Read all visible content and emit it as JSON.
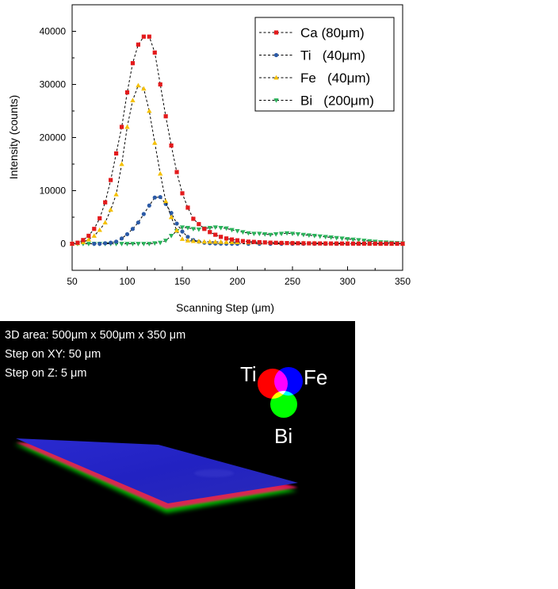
{
  "chart_data": {
    "type": "line",
    "xlabel": "Scanning Step (μm)",
    "ylabel": "Intensity (counts)",
    "xlim": [
      50,
      350
    ],
    "ylim": [
      -5000,
      45000
    ],
    "xticks": [
      "50",
      "100",
      "150",
      "200",
      "250",
      "300",
      "350"
    ],
    "yticks": [
      "0",
      "10000",
      "20000",
      "30000",
      "40000"
    ],
    "legend_position": "top-right",
    "grid": false,
    "series": [
      {
        "name": "Ca (80μm)",
        "color": "#e31a1c",
        "marker": "square",
        "x": [
          50,
          55,
          60,
          65,
          70,
          75,
          80,
          85,
          90,
          95,
          100,
          105,
          110,
          115,
          120,
          125,
          130,
          135,
          140,
          145,
          150,
          155,
          160,
          165,
          170,
          175,
          180,
          185,
          190,
          195,
          200,
          205,
          210,
          215,
          220,
          225,
          230,
          235,
          240,
          245,
          250,
          255,
          260,
          265,
          270,
          275,
          280,
          285,
          290,
          295,
          300,
          305,
          310,
          315,
          320,
          325,
          330,
          335,
          340,
          345,
          350
        ],
        "y": [
          0,
          200,
          700,
          1500,
          2800,
          4800,
          7800,
          12000,
          17000,
          22000,
          28500,
          34000,
          37500,
          39000,
          39000,
          36000,
          30000,
          24000,
          18500,
          13500,
          9500,
          6800,
          4700,
          3700,
          2800,
          2200,
          1700,
          1300,
          1000,
          800,
          650,
          500,
          400,
          350,
          300,
          250,
          200,
          180,
          150,
          130,
          120,
          100,
          90,
          80,
          70,
          60,
          55,
          50,
          45,
          40,
          35,
          30,
          28,
          25,
          22,
          20,
          18,
          15,
          12,
          10,
          8
        ]
      },
      {
        "name": "Ti   (40μm)",
        "color": "#2b5aa6",
        "marker": "circle",
        "x": [
          70,
          75,
          80,
          85,
          90,
          95,
          100,
          105,
          110,
          115,
          120,
          125,
          130,
          135,
          140,
          145,
          150,
          155,
          160,
          165,
          170,
          175,
          180,
          185,
          190,
          195,
          200,
          210,
          220,
          230,
          240,
          250,
          260,
          270,
          280,
          290,
          300,
          310,
          320,
          330,
          340,
          350
        ],
        "y": [
          0,
          0,
          100,
          200,
          400,
          1000,
          1800,
          2800,
          4000,
          5600,
          7200,
          8700,
          8800,
          7500,
          5800,
          3800,
          2300,
          1300,
          700,
          400,
          200,
          100,
          50,
          30,
          20,
          10,
          0,
          0,
          0,
          0,
          0,
          0,
          0,
          0,
          0,
          0,
          0,
          0,
          0,
          0,
          0,
          0
        ]
      },
      {
        "name": "Fe   (40μm)",
        "color": "#f5c000",
        "marker": "triangle-up",
        "x": [
          50,
          55,
          60,
          65,
          70,
          75,
          80,
          85,
          90,
          95,
          100,
          105,
          110,
          115,
          120,
          125,
          130,
          135,
          140,
          145,
          150,
          155,
          160,
          165,
          170,
          175,
          180,
          185,
          190,
          195,
          200,
          210,
          220,
          230,
          240,
          250,
          260,
          270,
          280,
          290,
          300,
          310,
          320,
          330,
          340,
          350
        ],
        "y": [
          0,
          100,
          300,
          800,
          1500,
          2600,
          4000,
          6400,
          9300,
          15000,
          22000,
          27000,
          29800,
          29200,
          25000,
          19000,
          13200,
          8000,
          5000,
          2500,
          900,
          600,
          500,
          450,
          400,
          380,
          360,
          340,
          320,
          300,
          280,
          250,
          220,
          200,
          180,
          160,
          140,
          120,
          100,
          90,
          80,
          70,
          60,
          50,
          40,
          30
        ]
      },
      {
        "name": "Bi   (200μm)",
        "color": "#2ab25a",
        "marker": "triangle-down",
        "x": [
          50,
          55,
          60,
          65,
          70,
          75,
          80,
          85,
          90,
          95,
          100,
          105,
          110,
          115,
          120,
          125,
          130,
          135,
          140,
          145,
          150,
          155,
          160,
          165,
          170,
          175,
          180,
          185,
          190,
          195,
          200,
          205,
          210,
          215,
          220,
          225,
          230,
          235,
          240,
          245,
          250,
          255,
          260,
          265,
          270,
          275,
          280,
          285,
          290,
          295,
          300,
          305,
          310,
          315,
          320,
          325,
          330,
          335,
          340,
          345,
          350
        ],
        "y": [
          0,
          0,
          0,
          0,
          0,
          0,
          0,
          0,
          0,
          0,
          0,
          0,
          0,
          0,
          0,
          100,
          200,
          600,
          1500,
          2400,
          3100,
          3000,
          2800,
          2700,
          2900,
          3000,
          3100,
          3000,
          2900,
          2600,
          2400,
          2200,
          2000,
          1900,
          1900,
          1800,
          1700,
          1800,
          1900,
          2000,
          1900,
          1800,
          1700,
          1600,
          1500,
          1400,
          1300,
          1200,
          1100,
          1000,
          900,
          800,
          700,
          600,
          500,
          400,
          300,
          250,
          200,
          150,
          100
        ]
      }
    ]
  },
  "render_panel": {
    "info_lines": [
      "3D area: 500μm x 500μm x 350 μm",
      "Step on XY: 50 μm",
      "Step on Z: 5 μm"
    ],
    "venn": {
      "labels": {
        "red": "Ti",
        "blue": "Fe",
        "green": "Bi"
      },
      "colors": {
        "red": "#ff0000",
        "blue": "#0000ff",
        "green": "#00ff00"
      }
    }
  }
}
